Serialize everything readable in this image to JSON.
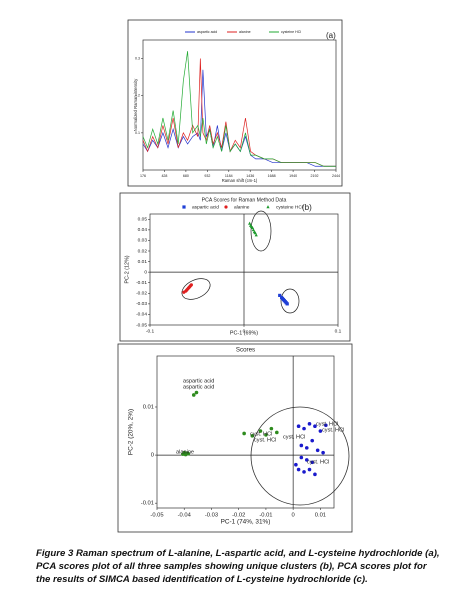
{
  "chart_data": [
    {
      "type": "line",
      "panel_label": "(a)",
      "xlabel": "Raman shift (cm-1)",
      "ylabel": "Normalized Raman intensity",
      "x": [
        176,
        230,
        290,
        350,
        410,
        470,
        530,
        590,
        650,
        700,
        760,
        820,
        850,
        880,
        920,
        960,
        1000,
        1050,
        1100,
        1150,
        1200,
        1260,
        1320,
        1380,
        1440,
        1500,
        1600,
        1700,
        1800,
        1900,
        2000,
        2100,
        2200,
        2300,
        2444
      ],
      "series": [
        {
          "name": "aspartic acid",
          "color": "#2233cc",
          "values": [
            0.07,
            0.05,
            0.08,
            0.06,
            0.1,
            0.06,
            0.11,
            0.06,
            0.09,
            0.07,
            0.09,
            0.1,
            0.08,
            0.27,
            0.09,
            0.11,
            0.06,
            0.12,
            0.05,
            0.1,
            0.05,
            0.07,
            0.05,
            0.09,
            0.04,
            0.03,
            0.03,
            0.02,
            0.02,
            0.02,
            0.02,
            0.02,
            0.01,
            0.01,
            0.01
          ]
        },
        {
          "name": "alanine",
          "color": "#dd2222",
          "values": [
            0.08,
            0.05,
            0.09,
            0.06,
            0.12,
            0.07,
            0.14,
            0.06,
            0.1,
            0.08,
            0.12,
            0.09,
            0.3,
            0.1,
            0.08,
            0.12,
            0.07,
            0.1,
            0.06,
            0.13,
            0.05,
            0.08,
            0.06,
            0.14,
            0.05,
            0.04,
            0.03,
            0.03,
            0.02,
            0.02,
            0.02,
            0.02,
            0.02,
            0.01,
            0.01
          ]
        },
        {
          "name": "cysteine HCl",
          "color": "#22aa33",
          "values": [
            0.09,
            0.06,
            0.11,
            0.07,
            0.14,
            0.08,
            0.16,
            0.07,
            0.24,
            0.32,
            0.1,
            0.12,
            0.09,
            0.14,
            0.07,
            0.11,
            0.06,
            0.09,
            0.05,
            0.12,
            0.05,
            0.07,
            0.05,
            0.1,
            0.04,
            0.04,
            0.03,
            0.03,
            0.02,
            0.02,
            0.02,
            0.02,
            0.02,
            0.01,
            0.01
          ]
        }
      ],
      "xlim": [
        176,
        2444
      ],
      "xticks": [
        176,
        428,
        680,
        932,
        1184,
        1436,
        1688,
        1940,
        2192,
        2444
      ],
      "ylim": [
        0,
        0.35
      ],
      "yticks": [
        0.1,
        0.2,
        0.3
      ]
    },
    {
      "type": "scatter",
      "panel_label": "(b)",
      "title": "PCA Scores for Raman Method Data",
      "xlabel": "PC-1 (69%)",
      "ylabel": "PC-2 (12%)",
      "zero_lines": true,
      "series": [
        {
          "name": "aspartic acid",
          "color": "#1f3fd6",
          "marker": "square",
          "x": [
            0.038,
            0.04,
            0.041,
            0.042,
            0.043,
            0.044,
            0.045,
            0.046
          ],
          "values": [
            -0.022,
            -0.024,
            -0.025,
            -0.026,
            -0.027,
            -0.028,
            -0.029,
            -0.03
          ]
        },
        {
          "name": "alanine",
          "color": "#e02020",
          "marker": "circle",
          "x": [
            -0.064,
            -0.062,
            -0.061,
            -0.06,
            -0.059,
            -0.058,
            -0.057,
            -0.056
          ],
          "values": [
            -0.019,
            -0.018,
            -0.017,
            -0.016,
            -0.015,
            -0.014,
            -0.013,
            -0.012
          ]
        },
        {
          "name": "cysteine HCl",
          "color": "#1e9a2e",
          "marker": "triangle",
          "x": [
            0.006,
            0.007,
            0.008,
            0.009,
            0.01,
            0.011,
            0.012,
            0.013
          ],
          "values": [
            0.046,
            0.044,
            0.043,
            0.042,
            0.04,
            0.038,
            0.037,
            0.035
          ]
        }
      ],
      "xlim": [
        -0.1,
        0.1
      ],
      "xticks": [
        -0.1,
        0,
        0.1
      ],
      "ylim": [
        -0.05,
        0.055
      ],
      "yticks": [
        0.05,
        0.04,
        0.03,
        0.02,
        0.01,
        0,
        -0.01,
        -0.02,
        -0.03,
        -0.04,
        -0.05
      ]
    },
    {
      "type": "scatter",
      "title": "Scores",
      "xlabel": "PC-1 (74%, 31%)",
      "ylabel": "PC-2 (20%, 2%)",
      "zero_lines": true,
      "series": [
        {
          "color": "#2e8b1e",
          "marker": "circle",
          "x": [
            -0.0365,
            -0.0355,
            -0.0405,
            -0.04,
            -0.0395,
            -0.039,
            -0.0385,
            -0.018,
            -0.015,
            -0.012,
            -0.01,
            -0.008,
            -0.006
          ],
          "values": [
            0.0125,
            0.013,
            0.0002,
            0.0005,
            0.0001,
            0.0004,
            0.0003,
            0.0045,
            0.004,
            0.005,
            0.0042,
            0.0055,
            0.0047
          ]
        },
        {
          "color": "#1a1acc",
          "marker": "circle",
          "x": [
            0.002,
            0.004,
            0.006,
            0.008,
            0.01,
            0.012,
            0.003,
            0.005,
            0.007,
            0.009,
            0.001,
            0.002,
            0.004,
            0.006,
            0.008,
            0.003,
            0.005,
            0.007,
            0.011
          ],
          "values": [
            0.006,
            0.0055,
            0.0065,
            0.006,
            0.005,
            0.0062,
            0.002,
            0.0015,
            0.003,
            0.001,
            -0.002,
            -0.003,
            -0.0035,
            -0.003,
            -0.004,
            -0.0005,
            -0.001,
            -0.0015,
            0.0005
          ]
        }
      ],
      "annotations": [
        "aspartic acid",
        "aspartic acid",
        "alanine",
        "cyst. HCl",
        "cyst. HCl",
        "cyst. HCl",
        "cyst. HCl",
        "cyst. HCl",
        "cyst. HCl"
      ],
      "xlim": [
        -0.05,
        0.015
      ],
      "xticks": [
        -0.05,
        -0.04,
        -0.03,
        -0.02,
        -0.01,
        0,
        0.01
      ],
      "ylim": [
        -0.011,
        0.0206
      ],
      "yticks": [
        0.01,
        0,
        -0.01
      ]
    }
  ],
  "caption": "Figure 3 Raman spectrum of L-alanine, L-aspartic acid, and L-cysteine hydrochloride (a), PCA scores plot of all three samples showing unique clusters (b), PCA scores plot for the results of SIMCA based identification of L-cysteine hydrochloride (c)."
}
